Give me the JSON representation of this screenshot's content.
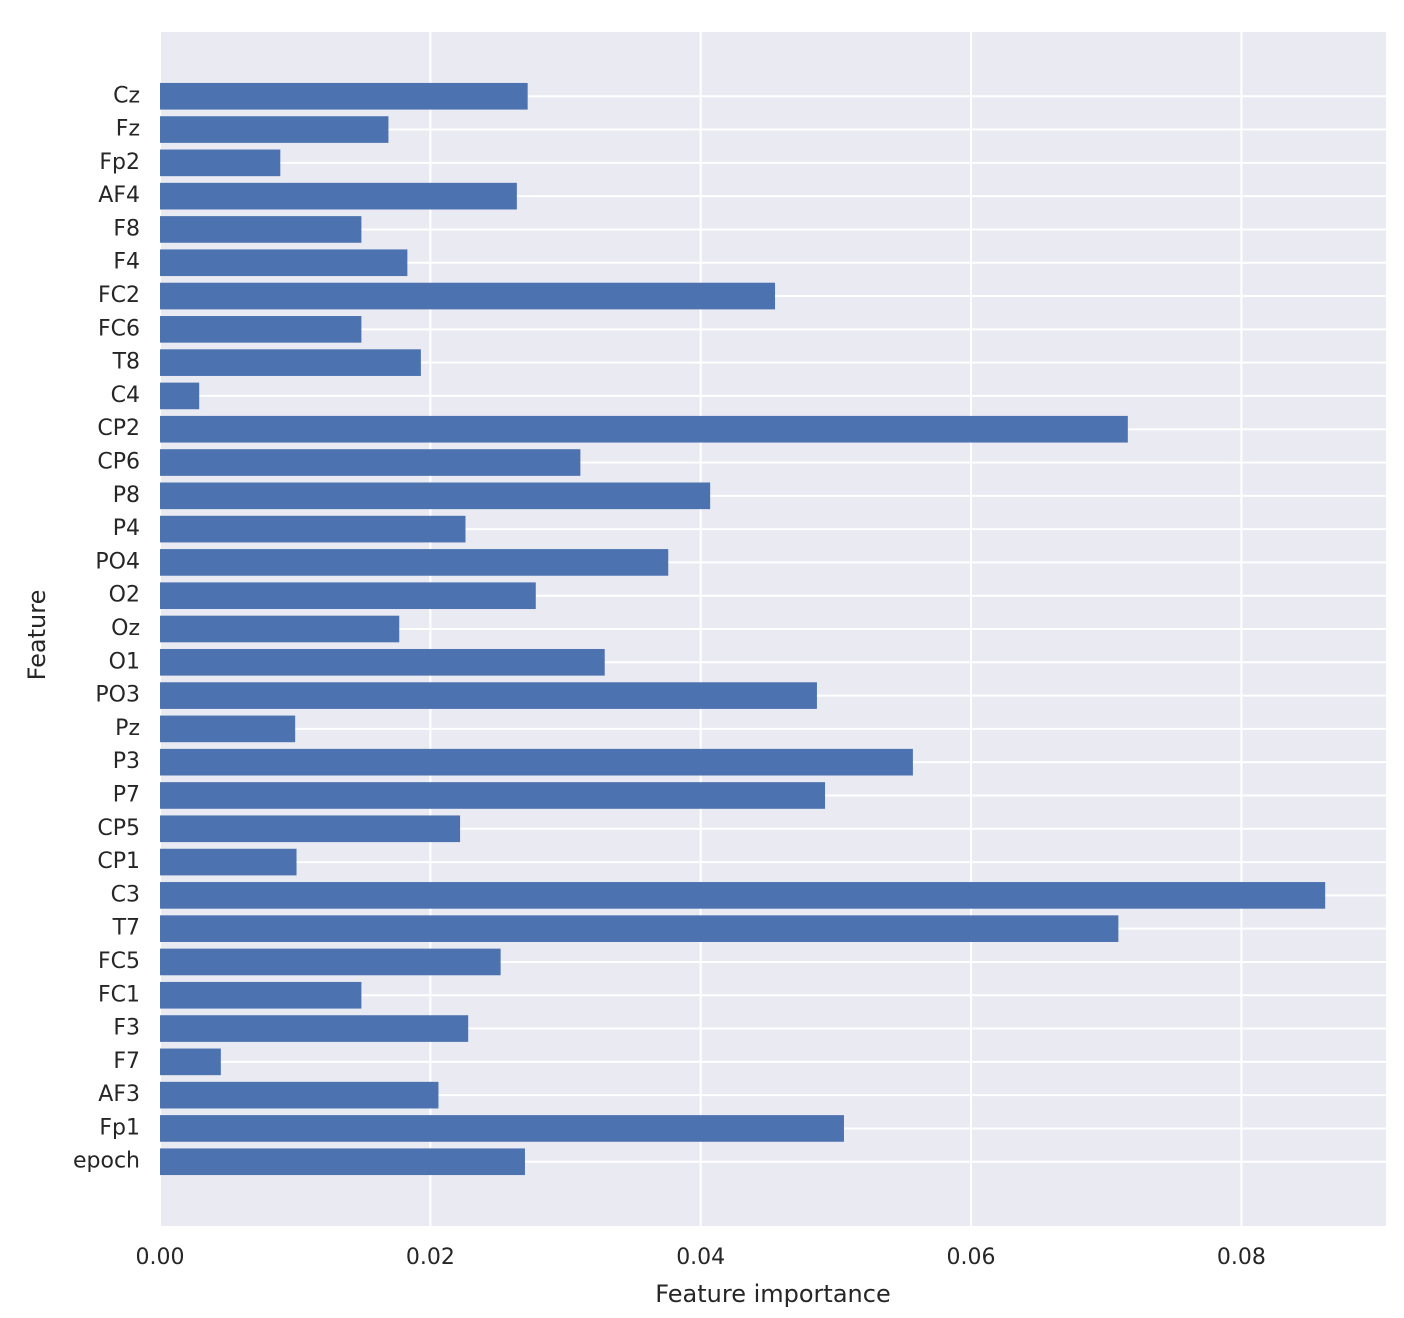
{
  "chart_data": {
    "type": "barh",
    "xlabel": "Feature importance",
    "ylabel": "Feature",
    "color": "#4c72b0",
    "grid": true,
    "categories": [
      "epoch",
      "Fp1",
      "AF3",
      "F7",
      "F3",
      "FC1",
      "FC5",
      "T7",
      "C3",
      "CP1",
      "CP5",
      "P7",
      "P3",
      "Pz",
      "PO3",
      "O1",
      "Oz",
      "O2",
      "PO4",
      "P4",
      "P8",
      "CP6",
      "CP2",
      "C4",
      "T8",
      "FC6",
      "FC2",
      "F4",
      "F8",
      "AF4",
      "Fp2",
      "Fz",
      "Cz"
    ],
    "values": [
      0.027,
      0.0506,
      0.0206,
      0.0045,
      0.0228,
      0.0149,
      0.0252,
      0.0709,
      0.0862,
      0.0101,
      0.0222,
      0.0492,
      0.0557,
      0.01,
      0.0486,
      0.0329,
      0.0177,
      0.0278,
      0.0376,
      0.0226,
      0.0407,
      0.0311,
      0.0716,
      0.0029,
      0.0193,
      0.0149,
      0.0455,
      0.0183,
      0.0149,
      0.0264,
      0.0089,
      0.0169,
      0.0272
    ],
    "xlim": [
      0,
      0.0907
    ],
    "xticks": [
      {
        "value": 0,
        "label": "0.00"
      },
      {
        "value": 0.02,
        "label": "0.02"
      },
      {
        "value": 0.04,
        "label": "0.04"
      },
      {
        "value": 0.06,
        "label": "0.06"
      },
      {
        "value": 0.08,
        "label": "0.08"
      }
    ]
  }
}
